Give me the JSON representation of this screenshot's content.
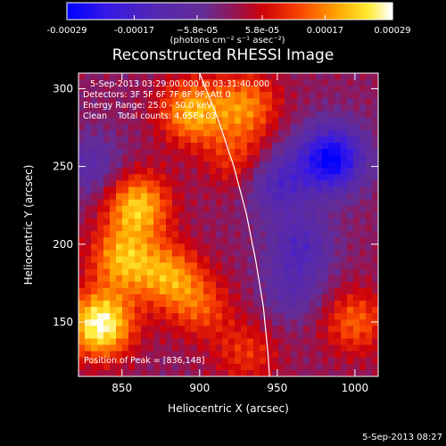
{
  "chart_data": {
    "type": "heatmap",
    "title": "Reconstructed RHESSI Image",
    "xlabel": "Heliocentric X (arcsec)",
    "ylabel": "Heliocentric Y (arcsec)",
    "xlim": [
      822,
      1015
    ],
    "ylim": [
      115,
      310
    ],
    "x_ticks": [
      850,
      900,
      950,
      1000
    ],
    "x_tick_labels": [
      "850",
      "900",
      "950",
      "1000"
    ],
    "y_ticks": [
      150,
      200,
      250,
      300
    ],
    "y_tick_labels": [
      "150",
      "200",
      "250",
      "300"
    ],
    "colorbar": {
      "range": [
        -0.00029,
        0.00029
      ],
      "ticks": [
        -0.00029,
        -0.00017,
        -5.8e-05,
        5.8e-05,
        0.00017,
        0.00029
      ],
      "tick_labels": [
        "-0.00029",
        "-0.00017",
        "−5.8e-05",
        "5.8e-05",
        "0.00017",
        "0.00029"
      ],
      "unit_label": "(photons cm⁻² s⁻¹ asec⁻²)"
    },
    "annotations": {
      "time_range": "5-Sep-2013 03:29:00.000 to 03:31:40.000",
      "detectors": "Detectors: 3F 5F 6F 7F 8F 9F, Att 0",
      "energy": "Energy Range: 25.0 - 50.0 keV",
      "clean": "Clean    Total counts: 4.65E+03",
      "peak": "Position of Peak = [836,148]"
    },
    "timestamp": "5-Sep-2013 08:27",
    "grid_cells": [
      48,
      48
    ],
    "value_range": [
      -0.00029,
      0.00029
    ],
    "hot_spots": [
      {
        "x": 836,
        "y": 148,
        "value": 0.00029
      },
      {
        "x": 860,
        "y": 225,
        "value": 0.00022
      },
      {
        "x": 850,
        "y": 190,
        "value": 0.00019
      },
      {
        "x": 880,
        "y": 180,
        "value": 0.00017
      },
      {
        "x": 895,
        "y": 285,
        "value": 0.0002
      },
      {
        "x": 930,
        "y": 290,
        "value": 0.00016
      },
      {
        "x": 1000,
        "y": 150,
        "value": 0.00014
      },
      {
        "x": 900,
        "y": 160,
        "value": 0.00012
      },
      {
        "x": 930,
        "y": 130,
        "value": 0.0001
      },
      {
        "x": 925,
        "y": 255,
        "value": 0.00011
      }
    ],
    "cold_spots": [
      {
        "x": 985,
        "y": 255,
        "value": -0.00029
      },
      {
        "x": 950,
        "y": 240,
        "value": -0.00015
      },
      {
        "x": 965,
        "y": 200,
        "value": -0.00013
      },
      {
        "x": 830,
        "y": 250,
        "value": -0.0001
      },
      {
        "x": 960,
        "y": 170,
        "value": -9e-05
      }
    ],
    "limb": [
      {
        "x": 900,
        "y": 310
      },
      {
        "x": 912,
        "y": 280
      },
      {
        "x": 922,
        "y": 250
      },
      {
        "x": 930,
        "y": 220
      },
      {
        "x": 936,
        "y": 190
      },
      {
        "x": 941,
        "y": 160
      },
      {
        "x": 944,
        "y": 130
      },
      {
        "x": 945,
        "y": 115
      }
    ]
  }
}
